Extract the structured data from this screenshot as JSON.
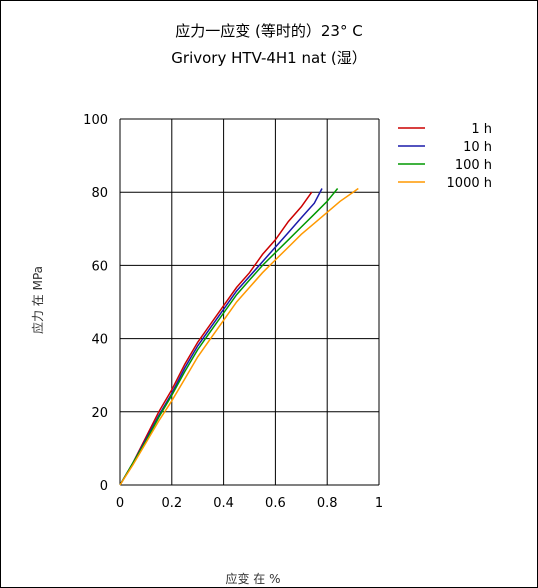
{
  "chart_data": {
    "type": "line",
    "title": "应力一应变 (等时的）23°  C",
    "subtitle": "Grivory HTV-4H1 nat (湿）",
    "xlabel": "应变 在 %",
    "ylabel": "应力 在  MPa",
    "xlim": [
      0,
      1
    ],
    "ylim": [
      0,
      100
    ],
    "x_ticks": [
      "0",
      "0.2",
      "0.4",
      "0.6",
      "0.8",
      "1"
    ],
    "y_ticks": [
      "0",
      "20",
      "40",
      "60",
      "80",
      "100"
    ],
    "grid": true,
    "legend_position": "top-right",
    "series": [
      {
        "name": "1 h",
        "color": "#cc0000",
        "points": [
          [
            0,
            0
          ],
          [
            0.05,
            6
          ],
          [
            0.1,
            13
          ],
          [
            0.15,
            20
          ],
          [
            0.2,
            26
          ],
          [
            0.25,
            33
          ],
          [
            0.3,
            39
          ],
          [
            0.35,
            44
          ],
          [
            0.4,
            49
          ],
          [
            0.45,
            54
          ],
          [
            0.5,
            58
          ],
          [
            0.55,
            63
          ],
          [
            0.6,
            67
          ],
          [
            0.65,
            72
          ],
          [
            0.7,
            76
          ],
          [
            0.74,
            80
          ]
        ]
      },
      {
        "name": "10 h",
        "color": "#1a1aaa",
        "points": [
          [
            0,
            0
          ],
          [
            0.05,
            6
          ],
          [
            0.1,
            12.5
          ],
          [
            0.15,
            19
          ],
          [
            0.2,
            25
          ],
          [
            0.25,
            32
          ],
          [
            0.3,
            38
          ],
          [
            0.35,
            43
          ],
          [
            0.4,
            48
          ],
          [
            0.45,
            53
          ],
          [
            0.5,
            57
          ],
          [
            0.55,
            61
          ],
          [
            0.6,
            65
          ],
          [
            0.65,
            69
          ],
          [
            0.7,
            73
          ],
          [
            0.75,
            77
          ],
          [
            0.78,
            81
          ]
        ]
      },
      {
        "name": "100 h",
        "color": "#009900",
        "points": [
          [
            0,
            0
          ],
          [
            0.05,
            6
          ],
          [
            0.1,
            12
          ],
          [
            0.15,
            18.5
          ],
          [
            0.2,
            24.5
          ],
          [
            0.25,
            31
          ],
          [
            0.3,
            37
          ],
          [
            0.35,
            42
          ],
          [
            0.4,
            47
          ],
          [
            0.45,
            52
          ],
          [
            0.5,
            56
          ],
          [
            0.55,
            60
          ],
          [
            0.6,
            63.5
          ],
          [
            0.65,
            67
          ],
          [
            0.7,
            70.5
          ],
          [
            0.75,
            74
          ],
          [
            0.8,
            77.5
          ],
          [
            0.84,
            81
          ]
        ]
      },
      {
        "name": "1000 h",
        "color": "#ff9900",
        "points": [
          [
            0,
            0
          ],
          [
            0.05,
            5.5
          ],
          [
            0.1,
            11.5
          ],
          [
            0.15,
            17.5
          ],
          [
            0.2,
            23
          ],
          [
            0.25,
            29
          ],
          [
            0.3,
            35
          ],
          [
            0.35,
            40
          ],
          [
            0.4,
            45
          ],
          [
            0.45,
            50
          ],
          [
            0.5,
            54
          ],
          [
            0.55,
            58
          ],
          [
            0.6,
            61.5
          ],
          [
            0.65,
            65
          ],
          [
            0.7,
            68.5
          ],
          [
            0.75,
            71.5
          ],
          [
            0.8,
            74.5
          ],
          [
            0.85,
            77.5
          ],
          [
            0.9,
            80
          ],
          [
            0.92,
            81
          ]
        ]
      }
    ]
  }
}
